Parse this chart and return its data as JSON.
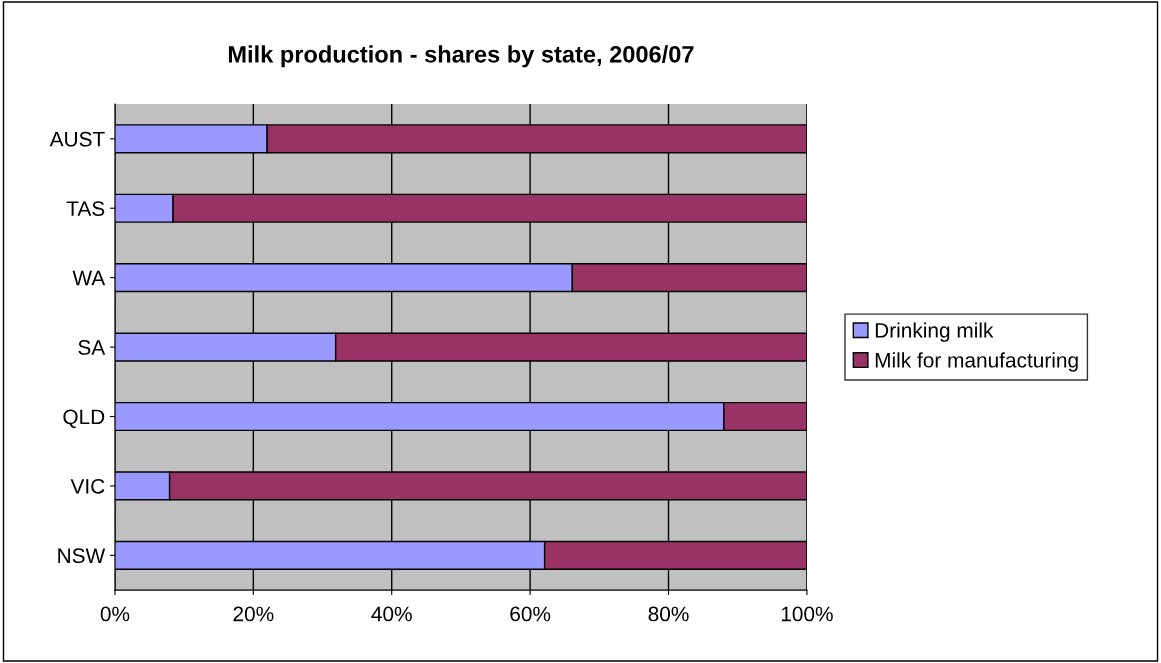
{
  "chart_data": {
    "type": "bar",
    "orientation": "horizontal",
    "stacked": true,
    "title": "Milk production - shares by state, 2006/07",
    "categories": [
      "AUST",
      "TAS",
      "WA",
      "SA",
      "QLD",
      "VIC",
      "NSW"
    ],
    "series": [
      {
        "name": "Drinking milk",
        "color": "#9999ff",
        "values": [
          22.0,
          8.4,
          66.1,
          31.9,
          88.0,
          7.9,
          62.1
        ]
      },
      {
        "name": "Milk for manufacturing",
        "color": "#993366",
        "values": [
          78.0,
          91.6,
          33.9,
          68.1,
          12.0,
          92.1,
          37.9
        ]
      }
    ],
    "xlim": [
      0,
      100
    ],
    "xticks": [
      {
        "value": 0,
        "label": "0%"
      },
      {
        "value": 20,
        "label": "20%"
      },
      {
        "value": 40,
        "label": "40%"
      },
      {
        "value": 60,
        "label": "60%"
      },
      {
        "value": 80,
        "label": "80%"
      },
      {
        "value": 100,
        "label": "100%"
      }
    ],
    "grid": "x",
    "legend": "right"
  }
}
